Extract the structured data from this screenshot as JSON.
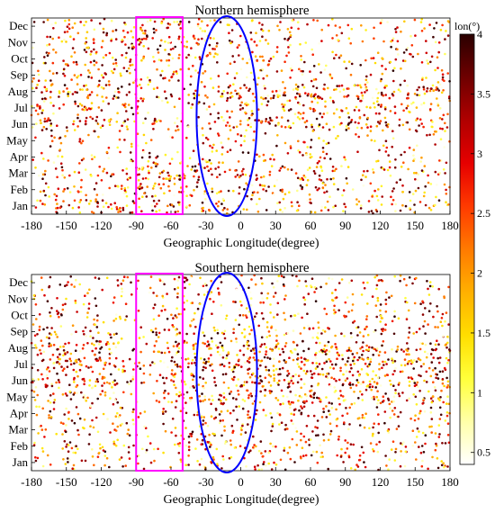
{
  "chart_data": [
    {
      "type": "scatter",
      "title": "Northern hemisphere",
      "xlabel": "Geographic Longitude(degree)",
      "ylabel": "",
      "xlim": [
        -180,
        180
      ],
      "xticks": [
        "-180",
        "-150",
        "-120",
        "-90",
        "-60",
        "-30",
        "0",
        "30",
        "60",
        "90",
        "120",
        "150",
        "180"
      ],
      "yticks": [
        "Jan",
        "Feb",
        "Mar",
        "Apr",
        "May",
        "Jun",
        "Jul",
        "Aug",
        "Sep",
        "Oct",
        "Nov",
        "Dec"
      ],
      "grid": false,
      "color_variable": "lon(°)",
      "month_bands": [
        {
          "month": "Jan",
          "density": [
            0.5,
            0.9,
            0.55,
            0.6,
            0.5,
            0.5,
            0.45,
            0.5,
            0.5
          ]
        },
        {
          "month": "Feb",
          "density": [
            0.45,
            0.5,
            0.9,
            0.6,
            0.55,
            0.5,
            0.5,
            0.5,
            0.45
          ]
        },
        {
          "month": "Mar",
          "density": [
            0.45,
            0.45,
            1.0,
            0.8,
            0.6,
            0.6,
            0.55,
            0.5,
            0.45
          ]
        },
        {
          "month": "Apr",
          "density": [
            0.3,
            0.3,
            0.55,
            0.45,
            0.4,
            0.35,
            0.3,
            0.3,
            0.3
          ]
        },
        {
          "month": "May",
          "density": [
            0.25,
            0.25,
            0.3,
            0.3,
            0.35,
            0.3,
            0.3,
            0.25,
            0.25
          ]
        },
        {
          "month": "Jun",
          "density": [
            0.7,
            0.8,
            0.5,
            0.4,
            0.7,
            0.75,
            0.8,
            0.75,
            0.7
          ]
        },
        {
          "month": "Jul",
          "density": [
            0.6,
            0.55,
            0.4,
            0.35,
            0.6,
            0.6,
            0.65,
            0.6,
            0.6
          ]
        },
        {
          "month": "Aug",
          "density": [
            0.9,
            0.9,
            0.5,
            0.45,
            1.0,
            1.0,
            1.0,
            1.0,
            0.95
          ]
        },
        {
          "month": "Sep",
          "density": [
            0.5,
            0.6,
            0.5,
            0.5,
            0.4,
            0.35,
            0.3,
            0.35,
            0.4
          ]
        },
        {
          "month": "Oct",
          "density": [
            0.55,
            0.6,
            0.6,
            0.55,
            0.45,
            0.4,
            0.35,
            0.4,
            0.45
          ]
        },
        {
          "month": "Nov",
          "density": [
            0.4,
            0.6,
            1.0,
            0.8,
            0.4,
            0.35,
            0.3,
            0.3,
            0.35
          ]
        },
        {
          "month": "Dec",
          "density": [
            0.45,
            0.5,
            0.75,
            0.55,
            0.4,
            0.35,
            0.3,
            0.35,
            0.4
          ]
        }
      ],
      "highlight_box": {
        "lon_range": [
          -90,
          -50
        ],
        "color": "#ff00ff"
      },
      "highlight_ellipse": {
        "lon_center": -12,
        "lon_halfwidth": 26,
        "color": "#0000ff"
      }
    },
    {
      "type": "scatter",
      "title": "Southern hemisphere",
      "xlabel": "Geographic Longitude(degree)",
      "ylabel": "",
      "xlim": [
        -180,
        180
      ],
      "xticks": [
        "-180",
        "-150",
        "-120",
        "-90",
        "-60",
        "-30",
        "0",
        "30",
        "60",
        "90",
        "120",
        "150",
        "180"
      ],
      "yticks": [
        "Jan",
        "Feb",
        "Mar",
        "Apr",
        "May",
        "Jun",
        "Jul",
        "Aug",
        "Sep",
        "Oct",
        "Nov",
        "Dec"
      ],
      "grid": false,
      "color_variable": "lon(°)",
      "month_bands": [
        {
          "month": "Jan",
          "density": [
            0.4,
            0.35,
            0.3,
            0.5,
            0.45,
            0.4,
            0.4,
            0.4,
            0.4
          ]
        },
        {
          "month": "Feb",
          "density": [
            0.5,
            0.45,
            0.3,
            0.7,
            0.55,
            0.5,
            0.45,
            0.45,
            0.5
          ]
        },
        {
          "month": "Mar",
          "density": [
            0.45,
            0.4,
            0.35,
            0.6,
            0.5,
            0.45,
            0.45,
            0.45,
            0.45
          ]
        },
        {
          "month": "Apr",
          "density": [
            0.5,
            0.45,
            0.3,
            0.55,
            0.6,
            0.55,
            0.5,
            0.5,
            0.5
          ]
        },
        {
          "month": "May",
          "density": [
            0.55,
            0.55,
            0.3,
            0.8,
            0.9,
            0.9,
            0.85,
            0.85,
            0.75
          ]
        },
        {
          "month": "Jun",
          "density": [
            0.85,
            0.85,
            0.4,
            0.95,
            1.0,
            1.0,
            1.0,
            1.0,
            0.95
          ]
        },
        {
          "month": "Jul",
          "density": [
            0.95,
            0.9,
            0.4,
            1.0,
            1.0,
            1.0,
            1.0,
            1.0,
            1.0
          ]
        },
        {
          "month": "Aug",
          "density": [
            0.9,
            0.85,
            0.4,
            0.9,
            0.9,
            0.95,
            0.95,
            0.9,
            0.9
          ]
        },
        {
          "month": "Sep",
          "density": [
            0.55,
            0.5,
            0.35,
            0.55,
            0.55,
            0.5,
            0.5,
            0.5,
            0.5
          ]
        },
        {
          "month": "Oct",
          "density": [
            0.4,
            0.35,
            0.3,
            0.45,
            0.45,
            0.4,
            0.4,
            0.4,
            0.4
          ]
        },
        {
          "month": "Nov",
          "density": [
            0.35,
            0.3,
            0.3,
            0.5,
            0.4,
            0.35,
            0.35,
            0.35,
            0.35
          ]
        },
        {
          "month": "Dec",
          "density": [
            0.4,
            0.35,
            0.3,
            0.6,
            0.45,
            0.4,
            0.4,
            0.4,
            0.4
          ]
        }
      ],
      "highlight_box": {
        "lon_range": [
          -90,
          -50
        ],
        "color": "#ff00ff"
      },
      "highlight_ellipse": {
        "lon_center": -12,
        "lon_halfwidth": 26,
        "color": "#0000ff"
      }
    }
  ],
  "colorbar": {
    "label": "lon(°)",
    "range": [
      0.4,
      4
    ],
    "ticks": [
      "0.5",
      "1",
      "1.5",
      "2",
      "2.5",
      "3",
      "3.5",
      "4"
    ],
    "tick_values": [
      0.5,
      1,
      1.5,
      2,
      2.5,
      3,
      3.5,
      4
    ],
    "colormap": [
      "#ffffff",
      "#ffffa8",
      "#ffff3a",
      "#ffde00",
      "#ffb000",
      "#ff7a00",
      "#ff3a00",
      "#e60000",
      "#b00000",
      "#6e0000",
      "#2a0000"
    ]
  }
}
